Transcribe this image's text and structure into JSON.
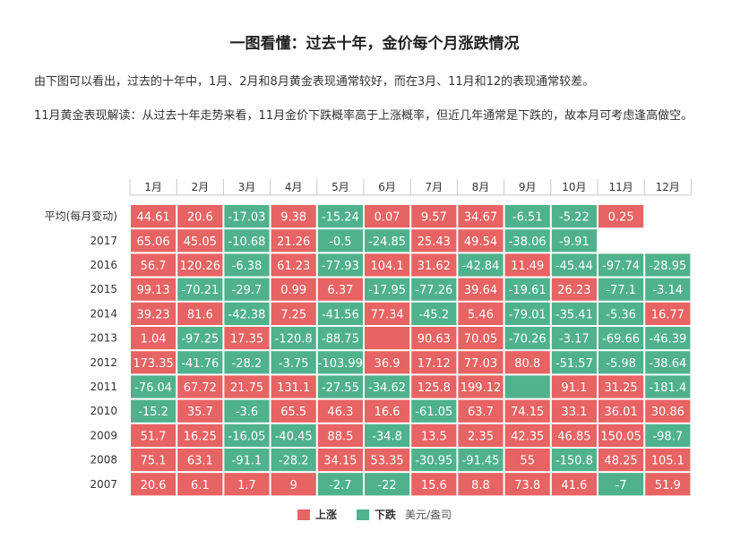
{
  "title": "一图看懂：过去十年，金价每个月涨跌情况",
  "intro": "由下图可以看出，过去的十年中，1月、2月和8月黄金表现通常较好，而在3月、11月和12的表现通常较差。",
  "note": "11月黄金表现解读：从过去十年走势来看，11月金价下跌概率高于上涨概率，但近几年通常是下跌的，故本月可考虑逢高做空。",
  "colors": {
    "up": "#e86363",
    "down": "#4fb28c",
    "grid": "#ffffff",
    "axis": "#c8c8c8"
  },
  "legend": {
    "up_label": "上涨",
    "down_label": "下跌",
    "unit": "美元/盎司"
  },
  "chart_data": {
    "type": "heatmap",
    "columns": [
      "1月",
      "2月",
      "3月",
      "4月",
      "5月",
      "6月",
      "7月",
      "8月",
      "9月",
      "10月",
      "11月",
      "12月"
    ],
    "rows": [
      "平均(每月变动)",
      "2017",
      "2016",
      "2015",
      "2014",
      "2013",
      "2012",
      "2011",
      "2010",
      "2009",
      "2008",
      "2007"
    ],
    "values": [
      [
        44.61,
        20.6,
        -17.03,
        9.38,
        -15.24,
        0.07,
        9.57,
        34.67,
        -6.51,
        -5.22,
        0.25,
        null
      ],
      [
        65.06,
        45.05,
        -10.68,
        21.26,
        -0.5,
        -24.85,
        25.43,
        49.54,
        -38.06,
        -9.91,
        null,
        null
      ],
      [
        56.7,
        120.26,
        -6.38,
        61.23,
        -77.93,
        104.1,
        31.62,
        -42.84,
        11.49,
        -45.44,
        -97.74,
        -28.95
      ],
      [
        99.13,
        -70.21,
        -29.7,
        0.99,
        6.37,
        -17.95,
        -77.26,
        39.64,
        -19.61,
        26.23,
        -77.1,
        -3.14
      ],
      [
        39.23,
        81.6,
        -42.38,
        7.25,
        -41.56,
        77.34,
        -45.2,
        5.46,
        -79.01,
        -35.41,
        -5.36,
        16.77
      ],
      [
        1.04,
        -97.25,
        17.35,
        -120.8,
        -88.75,
        null,
        90.63,
        70.05,
        -70.26,
        -3.17,
        -69.66,
        -46.39
      ],
      [
        173.35,
        -41.76,
        -28.2,
        -3.75,
        -103.99,
        36.9,
        17.12,
        77.03,
        80.8,
        -51.57,
        -5.98,
        -38.64
      ],
      [
        -76.04,
        67.72,
        21.75,
        131.1,
        -27.55,
        -34.62,
        125.8,
        199.12,
        null,
        91.1,
        31.25,
        -181.4
      ],
      [
        -15.2,
        35.7,
        -3.6,
        65.5,
        46.3,
        16.6,
        -61.05,
        63.7,
        74.15,
        33.1,
        36.01,
        30.86
      ],
      [
        51.7,
        16.25,
        -16.05,
        -40.45,
        88.5,
        -34.8,
        13.5,
        2.35,
        42.35,
        46.85,
        150.05,
        -98.7
      ],
      [
        75.1,
        63.1,
        -91.1,
        -28.2,
        34.15,
        53.35,
        -30.95,
        -91.45,
        55,
        -150.8,
        48.25,
        105.1
      ],
      [
        20.6,
        6.1,
        1.7,
        9,
        -2.7,
        -22,
        15.6,
        8.8,
        73.8,
        41.6,
        -7,
        51.9
      ]
    ],
    "cell_colors": [
      [
        "up",
        "up",
        "down",
        "up",
        "down",
        "up",
        "up",
        "up",
        "down",
        "down",
        "up",
        null
      ],
      [
        "up",
        "up",
        "down",
        "up",
        "down",
        "down",
        "up",
        "up",
        "down",
        "down",
        null,
        null
      ],
      [
        "up",
        "up",
        "down",
        "up",
        "down",
        "up",
        "up",
        "down",
        "up",
        "down",
        "down",
        "down"
      ],
      [
        "up",
        "down",
        "down",
        "up",
        "up",
        "down",
        "down",
        "up",
        "down",
        "up",
        "down",
        "down"
      ],
      [
        "up",
        "up",
        "down",
        "up",
        "down",
        "up",
        "down",
        "up",
        "down",
        "down",
        "down",
        "up"
      ],
      [
        "up",
        "down",
        "up",
        "down",
        "down",
        "up",
        "up",
        "up",
        "down",
        "down",
        "down",
        "down"
      ],
      [
        "up",
        "down",
        "down",
        "down",
        "down",
        "up",
        "up",
        "up",
        "up",
        "down",
        "down",
        "down"
      ],
      [
        "down",
        "up",
        "up",
        "up",
        "down",
        "down",
        "up",
        "up",
        "down",
        "up",
        "up",
        "down"
      ],
      [
        "down",
        "up",
        "down",
        "up",
        "up",
        "up",
        "down",
        "up",
        "up",
        "up",
        "up",
        "up"
      ],
      [
        "up",
        "up",
        "down",
        "down",
        "up",
        "down",
        "up",
        "up",
        "up",
        "up",
        "up",
        "down"
      ],
      [
        "up",
        "up",
        "down",
        "down",
        "up",
        "up",
        "down",
        "down",
        "up",
        "down",
        "up",
        "up"
      ],
      [
        "up",
        "up",
        "up",
        "up",
        "down",
        "down",
        "up",
        "up",
        "up",
        "up",
        "down",
        "up"
      ]
    ]
  }
}
